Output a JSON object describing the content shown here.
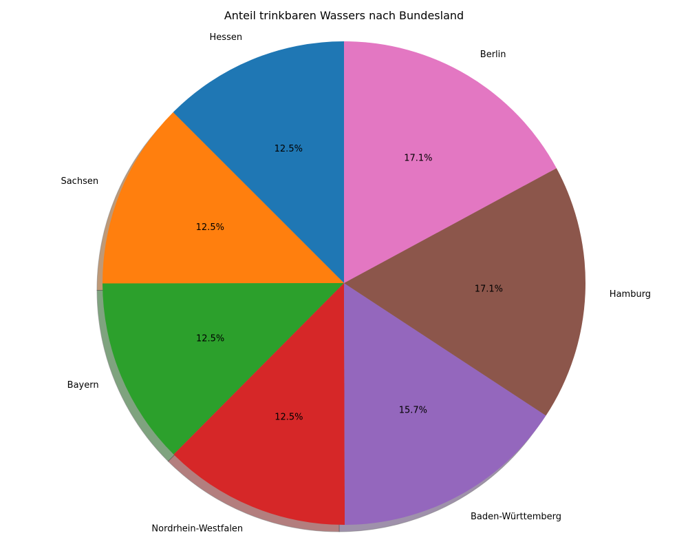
{
  "chart_data": {
    "type": "pie",
    "title": "Anteil trinkbaren Wassers nach Bundesland",
    "categories": [
      "Hessen",
      "Sachsen",
      "Bayern",
      "Nordrhein-Westfalen",
      "Baden-Württemberg",
      "Hamburg",
      "Berlin"
    ],
    "values": [
      12.5,
      12.5,
      12.5,
      12.5,
      15.7,
      17.1,
      17.1
    ],
    "value_labels": [
      "12.5%",
      "12.5%",
      "12.5%",
      "12.5%",
      "15.7%",
      "17.1%",
      "17.1%"
    ],
    "colors": [
      "#1f77b4",
      "#ff7f0e",
      "#2ca02c",
      "#d62728",
      "#9467bd",
      "#8c564b",
      "#e377c2"
    ],
    "start_angle_deg": 90,
    "direction": "counterclockwise",
    "shadow": true
  }
}
